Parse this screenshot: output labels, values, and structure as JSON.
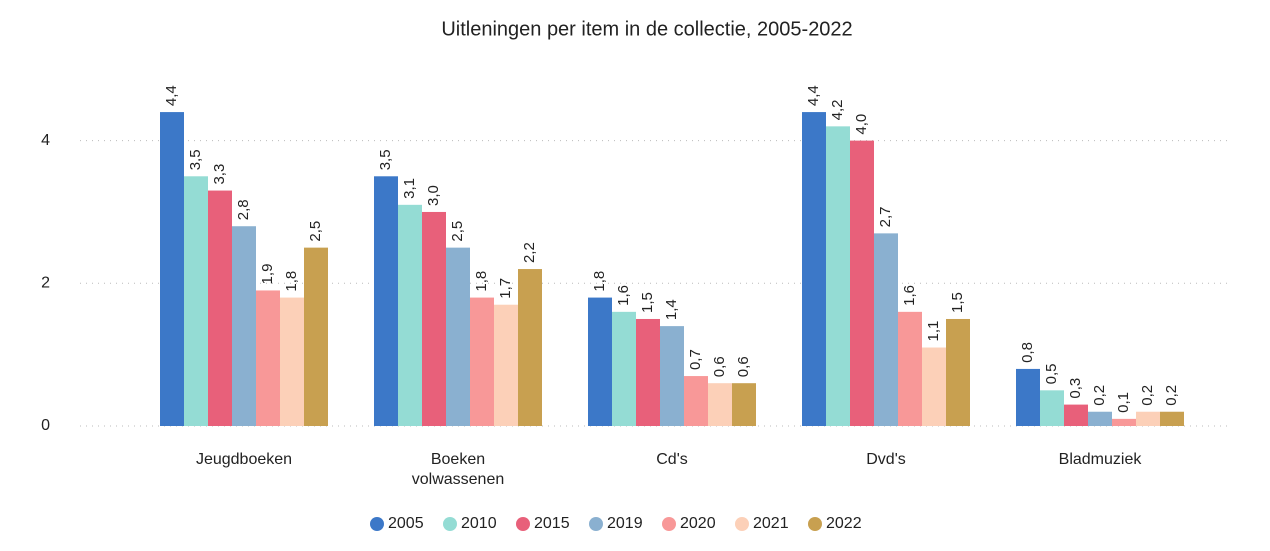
{
  "chart_data": {
    "type": "bar",
    "title": "Uitleningen per item in de collectie, 2005-2022",
    "categories": [
      "Jeugdboeken",
      "Boeken volwassenen",
      "Cd's",
      "Dvd's",
      "Bladmuziek"
    ],
    "series": [
      {
        "name": "2005",
        "color": "#3c78c8",
        "values": [
          4.4,
          3.5,
          1.8,
          4.4,
          0.8
        ],
        "value_labels": [
          "4,4",
          "3,5",
          "1,8",
          "4,4",
          "0,8"
        ]
      },
      {
        "name": "2010",
        "color": "#94dcd4",
        "values": [
          3.5,
          3.1,
          1.6,
          4.2,
          0.5
        ],
        "value_labels": [
          "3,5",
          "3,1",
          "1,6",
          "4,2",
          "0,5"
        ]
      },
      {
        "name": "2015",
        "color": "#e8607a",
        "values": [
          3.3,
          3.0,
          1.5,
          4.0,
          0.3
        ],
        "value_labels": [
          "3,3",
          "3,0",
          "1,5",
          "4,0",
          "0,3"
        ]
      },
      {
        "name": "2019",
        "color": "#8ab0d0",
        "values": [
          2.8,
          2.5,
          1.4,
          2.7,
          0.2
        ],
        "value_labels": [
          "2,8",
          "2,5",
          "1,4",
          "2,7",
          "0,2"
        ]
      },
      {
        "name": "2020",
        "color": "#f89898",
        "values": [
          1.9,
          1.8,
          0.7,
          1.6,
          0.1
        ],
        "value_labels": [
          "1,9",
          "1,8",
          "0,7",
          "1,6",
          "0,1"
        ]
      },
      {
        "name": "2021",
        "color": "#fcd0b8",
        "values": [
          1.8,
          1.7,
          0.6,
          1.1,
          0.2
        ],
        "value_labels": [
          "1,8",
          "1,7",
          "0,6",
          "1,1",
          "0,2"
        ]
      },
      {
        "name": "2022",
        "color": "#c8a050",
        "values": [
          2.5,
          2.2,
          0.6,
          1.5,
          0.2
        ],
        "value_labels": [
          "2,5",
          "2,2",
          "0,6",
          "1,5",
          "0,2"
        ]
      }
    ],
    "ylim": [
      0,
      5.2
    ],
    "yticks": [
      0,
      2,
      4
    ],
    "grid": true,
    "legend": "bottom"
  }
}
